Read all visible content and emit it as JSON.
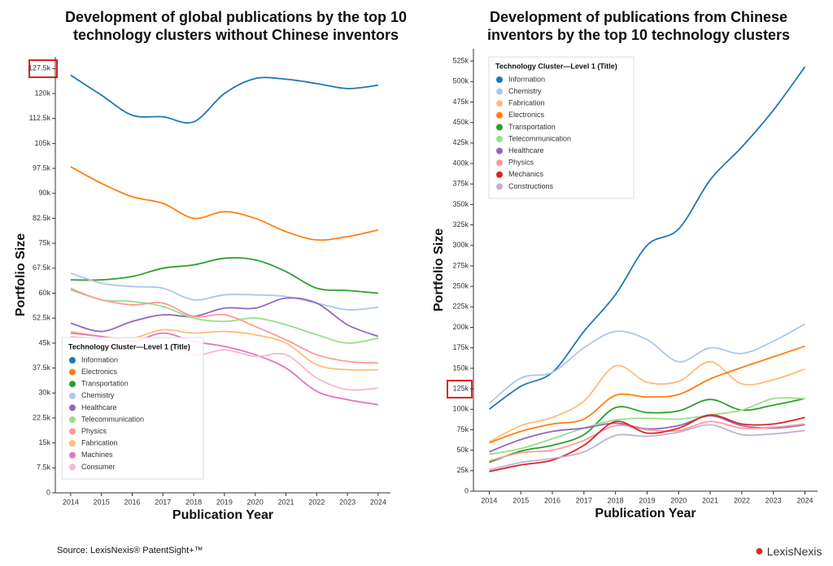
{
  "chart_data": [
    {
      "type": "line",
      "title": "Development of global publications by the top 10 technology clusters without Chinese inventors",
      "x_label": "Publication Year",
      "y_label": "Portfolio Size",
      "legend_title": "Technology Cluster—Level 1 (Title)",
      "legend_position": "bottom-left",
      "x": [
        2014,
        2015,
        2016,
        2017,
        2018,
        2019,
        2020,
        2021,
        2022,
        2023,
        2024
      ],
      "xlim": [
        2013.5,
        2024.4
      ],
      "xticks": [
        2014,
        2015,
        2016,
        2017,
        2018,
        2019,
        2020,
        2021,
        2022,
        2023,
        2024
      ],
      "ylim": [
        0,
        131000
      ],
      "yticks": [
        0,
        {
          "value": 7500,
          "label": "7.5k"
        },
        {
          "value": 15000,
          "label": "15k"
        },
        {
          "value": 22500,
          "label": "22.5k"
        },
        {
          "value": 30000,
          "label": "30k"
        },
        {
          "value": 37500,
          "label": "37.5k"
        },
        {
          "value": 45000,
          "label": "45k"
        },
        {
          "value": 52500,
          "label": "52.5k"
        },
        {
          "value": 60000,
          "label": "60k"
        },
        {
          "value": 67500,
          "label": "67.5k"
        },
        {
          "value": 75000,
          "label": "75k"
        },
        {
          "value": 82500,
          "label": "82.5k"
        },
        {
          "value": 90000,
          "label": "90k"
        },
        {
          "value": 97500,
          "label": "97.5k"
        },
        {
          "value": 105000,
          "label": "105k"
        },
        {
          "value": 112500,
          "label": "112.5k"
        },
        {
          "value": 120000,
          "label": "120k"
        },
        {
          "value": 127500,
          "label": "127.5k"
        }
      ],
      "series": [
        {
          "name": "Information",
          "color": "#1f77b4",
          "values": [
            125500,
            119500,
            113500,
            113000,
            111500,
            120000,
            124500,
            124300,
            123000,
            121500,
            122500
          ]
        },
        {
          "name": "Electronics",
          "color": "#ff7f0e",
          "values": [
            98000,
            93000,
            89000,
            87000,
            82500,
            84500,
            82500,
            78500,
            76000,
            77000,
            79000
          ]
        },
        {
          "name": "Transportation",
          "color": "#2ca02c",
          "values": [
            64000,
            64000,
            65000,
            67500,
            68500,
            70500,
            70000,
            66500,
            61500,
            60800,
            60000
          ]
        },
        {
          "name": "Chemistry",
          "color": "#aec7e8",
          "values": [
            66000,
            63000,
            62000,
            61500,
            58000,
            59500,
            59500,
            59000,
            57000,
            55000,
            55800
          ]
        },
        {
          "name": "Healthcare",
          "color": "#9467bd",
          "values": [
            51000,
            48500,
            51500,
            53500,
            53000,
            55500,
            55500,
            58500,
            57000,
            50500,
            47000
          ]
        },
        {
          "name": "Telecommunication",
          "color": "#98df8a",
          "values": [
            61500,
            58000,
            57500,
            56000,
            52500,
            51500,
            52500,
            50500,
            47500,
            45000,
            46500
          ]
        },
        {
          "name": "Physics",
          "color": "#ff9896",
          "values": [
            61000,
            58000,
            56500,
            57000,
            53000,
            53500,
            50000,
            46000,
            41500,
            39500,
            39000
          ]
        },
        {
          "name": "Fabrication",
          "color": "#ffbb78",
          "values": [
            48500,
            47000,
            46500,
            49000,
            48000,
            48500,
            47500,
            45000,
            38500,
            37000,
            37000
          ]
        },
        {
          "name": "Machines",
          "color": "#e377c2",
          "values": [
            48000,
            47000,
            45500,
            48000,
            45500,
            44000,
            41500,
            37500,
            30500,
            28000,
            26500
          ]
        },
        {
          "name": "Consumer",
          "color": "#f7b6d2",
          "values": [
            47000,
            46000,
            45000,
            46500,
            41500,
            43000,
            41000,
            41500,
            34500,
            31000,
            31500
          ]
        }
      ]
    },
    {
      "type": "line",
      "title": "Development of publications from Chinese inventors by the top 10 technology clusters",
      "x_label": "Publication Year",
      "y_label": "Portfolio Size",
      "legend_title": "Technology Cluster—Level 1 (Title)",
      "legend_position": "top-left",
      "x": [
        2014,
        2015,
        2016,
        2017,
        2018,
        2019,
        2020,
        2021,
        2022,
        2023,
        2024
      ],
      "xlim": [
        2013.5,
        2024.4
      ],
      "xticks": [
        2014,
        2015,
        2016,
        2017,
        2018,
        2019,
        2020,
        2021,
        2022,
        2023,
        2024
      ],
      "ylim": [
        0,
        540000
      ],
      "yticks": [
        0,
        {
          "value": 25000,
          "label": "25k"
        },
        {
          "value": 50000,
          "label": "50k"
        },
        {
          "value": 75000,
          "label": "75k"
        },
        {
          "value": 100000,
          "label": "100k"
        },
        {
          "value": 125000,
          "label": "125k"
        },
        {
          "value": 150000,
          "label": "150k"
        },
        {
          "value": 175000,
          "label": "175k"
        },
        {
          "value": 200000,
          "label": "200k"
        },
        {
          "value": 225000,
          "label": "225k"
        },
        {
          "value": 250000,
          "label": "250k"
        },
        {
          "value": 275000,
          "label": "275k"
        },
        {
          "value": 300000,
          "label": "300k"
        },
        {
          "value": 325000,
          "label": "325k"
        },
        {
          "value": 350000,
          "label": "350k"
        },
        {
          "value": 375000,
          "label": "375k"
        },
        {
          "value": 400000,
          "label": "400k"
        },
        {
          "value": 425000,
          "label": "425k"
        },
        {
          "value": 450000,
          "label": "450k"
        },
        {
          "value": 475000,
          "label": "475k"
        },
        {
          "value": 500000,
          "label": "500k"
        },
        {
          "value": 525000,
          "label": "525k"
        }
      ],
      "series": [
        {
          "name": "Information",
          "color": "#1f77b4",
          "values": [
            100000,
            128000,
            145000,
            195000,
            240000,
            300000,
            320000,
            380000,
            420000,
            465000,
            518000
          ]
        },
        {
          "name": "Chemistry",
          "color": "#aec7e8",
          "values": [
            107000,
            138000,
            145000,
            175000,
            195000,
            185000,
            158000,
            175000,
            168000,
            183000,
            204000
          ]
        },
        {
          "name": "Fabrication",
          "color": "#ffbb78",
          "values": [
            60000,
            80000,
            90000,
            110000,
            153000,
            133000,
            134000,
            158000,
            131000,
            136000,
            149000
          ]
        },
        {
          "name": "Electronics",
          "color": "#ff7f0e",
          "values": [
            59000,
            73000,
            82000,
            88000,
            117000,
            115000,
            118000,
            137000,
            151000,
            164000,
            177000
          ]
        },
        {
          "name": "Transportation",
          "color": "#2ca02c",
          "values": [
            35000,
            49000,
            56000,
            69000,
            102000,
            96000,
            98000,
            112000,
            99000,
            105000,
            113000
          ]
        },
        {
          "name": "Telecommunication",
          "color": "#98df8a",
          "values": [
            45000,
            52000,
            64000,
            77000,
            87000,
            89000,
            88000,
            93000,
            99000,
            113000,
            113000
          ]
        },
        {
          "name": "Healthcare",
          "color": "#9467bd",
          "values": [
            48000,
            63000,
            73000,
            77000,
            83000,
            76000,
            80000,
            92000,
            80000,
            77000,
            81000
          ]
        },
        {
          "name": "Physics",
          "color": "#ff9896",
          "values": [
            37000,
            47000,
            50000,
            62000,
            80000,
            75000,
            74000,
            85000,
            77000,
            78000,
            82000
          ]
        },
        {
          "name": "Mechanics",
          "color": "#d62728",
          "values": [
            24000,
            32000,
            38000,
            56000,
            85000,
            71000,
            77000,
            93000,
            82000,
            82000,
            90000
          ]
        },
        {
          "name": "Constructions",
          "color": "#c5b0d5",
          "values": [
            26000,
            35000,
            40000,
            48000,
            68000,
            67000,
            72000,
            81000,
            69000,
            70000,
            74000
          ]
        }
      ]
    }
  ],
  "source": "Source: LexisNexis® PatentSight+™",
  "logo": "LexisNexis"
}
